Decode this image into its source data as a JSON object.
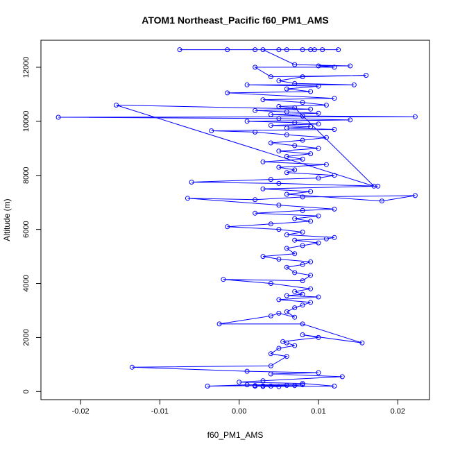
{
  "chart_data": {
    "type": "line",
    "title": "ATOM1 Northeast_Pacific f60_PM1_AMS",
    "xlabel": "f60_PM1_AMS",
    "ylabel": "Altitude (m)",
    "xlim": [
      -0.025,
      0.024
    ],
    "ylim": [
      -300,
      13000
    ],
    "xticks": [
      -0.02,
      -0.01,
      0.0,
      0.01,
      0.02
    ],
    "xtick_labels": [
      "-0.02",
      "-0.01",
      "0.00",
      "0.01",
      "0.02"
    ],
    "yticks": [
      0,
      2000,
      4000,
      6000,
      8000,
      10000,
      12000
    ],
    "ytick_labels": [
      "0",
      "2000",
      "4000",
      "6000",
      "8000",
      "10000",
      "12000"
    ],
    "series_color": "#0000ff",
    "marker": "open-circle",
    "grid": false,
    "series": [
      {
        "name": "f60_PM1_AMS",
        "points": [
          [
            0.004,
            200
          ],
          [
            0.002,
            200
          ],
          [
            0.003,
            210
          ],
          [
            0.007,
            220
          ],
          [
            0.008,
            250
          ],
          [
            0.001,
            250
          ],
          [
            -0.004,
            200
          ],
          [
            0.002,
            220
          ],
          [
            0.006,
            230
          ],
          [
            0.005,
            180
          ],
          [
            0.003,
            190
          ],
          [
            0.012,
            200
          ],
          [
            0.008,
            300
          ],
          [
            0.0,
            350
          ],
          [
            0.003,
            400
          ],
          [
            0.013,
            550
          ],
          [
            0.004,
            650
          ],
          [
            0.01,
            700
          ],
          [
            0.001,
            750
          ],
          [
            -0.0135,
            900
          ],
          [
            0.004,
            950
          ],
          [
            0.006,
            1300
          ],
          [
            0.004,
            1400
          ],
          [
            0.005,
            1600
          ],
          [
            0.007,
            1700
          ],
          [
            0.006,
            1800
          ],
          [
            0.0055,
            1850
          ],
          [
            0.01,
            2000
          ],
          [
            0.008,
            2100
          ],
          [
            0.0155,
            1800
          ],
          [
            0.008,
            2500
          ],
          [
            -0.0025,
            2500
          ],
          [
            0.004,
            2800
          ],
          [
            0.005,
            2900
          ],
          [
            0.007,
            2750
          ],
          [
            0.006,
            2950
          ],
          [
            0.007,
            3100
          ],
          [
            0.008,
            3200
          ],
          [
            0.009,
            3300
          ],
          [
            0.005,
            3400
          ],
          [
            0.01,
            3500
          ],
          [
            0.006,
            3550
          ],
          [
            0.008,
            3600
          ],
          [
            0.007,
            3700
          ],
          [
            0.009,
            3800
          ],
          [
            0.004,
            4000
          ],
          [
            -0.002,
            4150
          ],
          [
            0.008,
            4100
          ],
          [
            0.009,
            4300
          ],
          [
            0.007,
            4400
          ],
          [
            0.006,
            4600
          ],
          [
            0.008,
            4700
          ],
          [
            0.009,
            4800
          ],
          [
            0.005,
            4900
          ],
          [
            0.003,
            5000
          ],
          [
            0.007,
            5100
          ],
          [
            0.006,
            5300
          ],
          [
            0.008,
            5400
          ],
          [
            0.01,
            5500
          ],
          [
            0.007,
            5600
          ],
          [
            0.011,
            5650
          ],
          [
            0.012,
            5700
          ],
          [
            0.006,
            5800
          ],
          [
            0.008,
            5900
          ],
          [
            0.005,
            6000
          ],
          [
            -0.0015,
            6100
          ],
          [
            0.004,
            6200
          ],
          [
            0.009,
            6300
          ],
          [
            0.007,
            6400
          ],
          [
            0.01,
            6500
          ],
          [
            0.002,
            6600
          ],
          [
            0.008,
            6700
          ],
          [
            0.012,
            6750
          ],
          [
            0.005,
            6900
          ],
          [
            -0.0065,
            7150
          ],
          [
            0.002,
            7100
          ],
          [
            0.008,
            7200
          ],
          [
            0.0222,
            7250
          ],
          [
            0.018,
            7050
          ],
          [
            0.006,
            7300
          ],
          [
            0.009,
            7400
          ],
          [
            0.003,
            7500
          ],
          [
            0.0175,
            7600
          ],
          [
            0.005,
            7700
          ],
          [
            -0.006,
            7750
          ],
          [
            0.004,
            7850
          ],
          [
            0.01,
            7900
          ],
          [
            0.012,
            8000
          ],
          [
            0.006,
            8100
          ],
          [
            0.007,
            8200
          ],
          [
            0.005,
            8300
          ],
          [
            0.011,
            8400
          ],
          [
            0.003,
            8500
          ],
          [
            0.008,
            8600
          ],
          [
            0.006,
            8700
          ],
          [
            0.009,
            8800
          ],
          [
            0.005,
            8900
          ],
          [
            0.01,
            9000
          ],
          [
            0.007,
            9100
          ],
          [
            0.004,
            9200
          ],
          [
            0.008,
            9300
          ],
          [
            0.011,
            9400
          ],
          [
            0.006,
            9500
          ],
          [
            0.002,
            9600
          ],
          [
            -0.0035,
            9650
          ],
          [
            0.012,
            9700
          ],
          [
            0.006,
            9750
          ],
          [
            0.009,
            9800
          ],
          [
            0.004,
            9850
          ],
          [
            0.01,
            9900
          ],
          [
            0.007,
            9950
          ],
          [
            0.001,
            10000
          ],
          [
            0.014,
            10050
          ],
          [
            0.005,
            10100
          ],
          [
            -0.0228,
            10150
          ],
          [
            0.0222,
            10170
          ],
          [
            0.008,
            10200
          ],
          [
            0.004,
            10250
          ],
          [
            0.01,
            10300
          ],
          [
            0.006,
            10350
          ],
          [
            0.002,
            10400
          ],
          [
            0.009,
            10450
          ],
          [
            -0.0155,
            10600
          ],
          [
            0.017,
            7600
          ],
          [
            0.007,
            10500
          ],
          [
            0.005,
            10550
          ],
          [
            0.011,
            10600
          ],
          [
            0.008,
            10700
          ],
          [
            0.003,
            10800
          ],
          [
            0.012,
            10850
          ],
          [
            -0.0015,
            11050
          ],
          [
            0.009,
            11100
          ],
          [
            0.006,
            11200
          ],
          [
            0.01,
            11300
          ],
          [
            0.001,
            11350
          ],
          [
            0.0145,
            11350
          ],
          [
            0.007,
            11400
          ],
          [
            0.005,
            11500
          ],
          [
            0.008,
            11650
          ],
          [
            0.016,
            11700
          ],
          [
            0.004,
            11650
          ],
          [
            0.002,
            12000
          ],
          [
            0.012,
            12000
          ],
          [
            0.01,
            12050
          ],
          [
            0.014,
            12050
          ],
          [
            0.007,
            12100
          ],
          [
            0.003,
            12650
          ],
          [
            -0.0075,
            12650
          ],
          [
            0.0105,
            12650
          ],
          [
            0.009,
            12650
          ],
          [
            -0.0015,
            12650
          ],
          [
            0.002,
            12650
          ],
          [
            0.005,
            12650
          ],
          [
            0.006,
            12650
          ],
          [
            0.008,
            12650
          ],
          [
            0.0095,
            12650
          ],
          [
            0.0125,
            12650
          ]
        ]
      }
    ]
  }
}
